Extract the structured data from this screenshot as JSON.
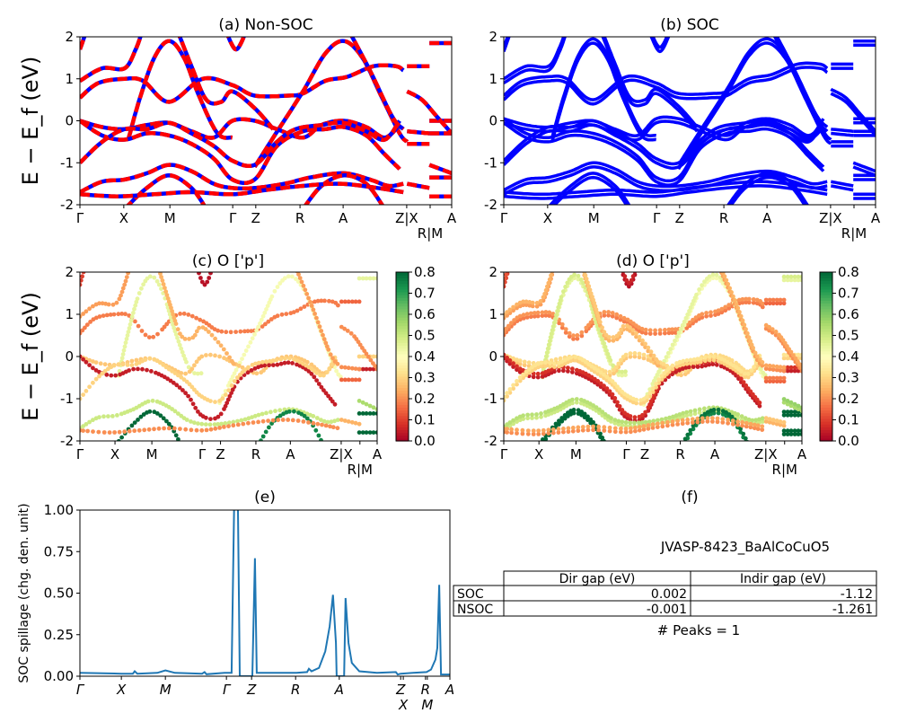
{
  "chart_data": [
    {
      "panel": "a",
      "type": "line",
      "title": "(a) Non-SOC",
      "ylabel": "E − E_f (eV)",
      "ylim": [
        -2,
        2
      ],
      "yticks": [
        -2,
        -1,
        0,
        1,
        2
      ],
      "xticks": [
        {
          "k": 0,
          "label": "Γ"
        },
        {
          "k": 0.118,
          "label": "X"
        },
        {
          "k": 0.242,
          "label": "M"
        },
        {
          "k": 0.411,
          "label": "Γ"
        },
        {
          "k": 0.473,
          "label": "Z"
        },
        {
          "k": 0.592,
          "label": "R"
        },
        {
          "k": 0.708,
          "label": "A"
        },
        {
          "k": 0.879,
          "label": "Z|X"
        },
        {
          "k": 0.942,
          "label": "R|M"
        },
        {
          "k": 1.0,
          "label": "A"
        }
      ],
      "colors": {
        "spin_up": "#0000ff",
        "spin_down": "#ff0000"
      },
      "bands": [
        {
          "w": 0.22,
          "points": [
            [
              0,
              0.95
            ],
            [
              0.06,
              1.25
            ],
            [
              0.12,
              1.25
            ],
            [
              0.15,
              1.7
            ],
            [
              0.17,
              2.2
            ]
          ]
        },
        {
          "w": 0.18,
          "points": [
            [
              0,
              0.55
            ],
            [
              0.05,
              0.9
            ],
            [
              0.12,
              1.0
            ],
            [
              0.17,
              0.95
            ],
            [
              0.24,
              0.45
            ],
            [
              0.33,
              1.0
            ],
            [
              0.41,
              0.85
            ],
            [
              0.47,
              0.6
            ],
            [
              0.56,
              0.6
            ],
            [
              0.6,
              0.65
            ],
            [
              0.66,
              0.95
            ],
            [
              0.72,
              1.05
            ],
            [
              0.79,
              1.3
            ],
            [
              0.85,
              1.3
            ],
            [
              0.87,
              1.2
            ]
          ]
        },
        {
          "w": 0.45,
          "points": [
            [
              0.13,
              -0.45
            ],
            [
              0.16,
              0.5
            ],
            [
              0.2,
              1.5
            ],
            [
              0.24,
              1.9
            ],
            [
              0.28,
              1.5
            ],
            [
              0.32,
              0.6
            ],
            [
              0.37,
              -0.3
            ],
            [
              0.41,
              -0.4
            ]
          ]
        },
        {
          "w": 0.42,
          "points": [
            [
              0.47,
              -1.1
            ],
            [
              0.52,
              -0.4
            ],
            [
              0.6,
              0.7
            ],
            [
              0.66,
              1.6
            ],
            [
              0.71,
              1.9
            ],
            [
              0.76,
              1.5
            ],
            [
              0.81,
              0.6
            ],
            [
              0.86,
              -0.3
            ],
            [
              0.88,
              -0.5
            ]
          ]
        },
        {
          "w": 0.28,
          "points": [
            [
              0,
              0
            ],
            [
              0.06,
              -0.15
            ],
            [
              0.12,
              -0.2
            ],
            [
              0.18,
              -0.1
            ],
            [
              0.24,
              -0.05
            ],
            [
              0.3,
              -0.25
            ],
            [
              0.36,
              -0.4
            ],
            [
              0.41,
              0.0
            ],
            [
              0.47,
              0.0
            ],
            [
              0.53,
              -0.2
            ],
            [
              0.6,
              -0.4
            ],
            [
              0.65,
              -0.1
            ],
            [
              0.71,
              0.0
            ],
            [
              0.77,
              -0.15
            ],
            [
              0.82,
              -0.4
            ],
            [
              0.86,
              -0.1
            ]
          ]
        },
        {
          "w": 0.05,
          "points": [
            [
              0,
              0
            ],
            [
              0.06,
              -0.35
            ],
            [
              0.12,
              -0.45
            ],
            [
              0.18,
              -0.3
            ],
            [
              0.24,
              -0.35
            ],
            [
              0.3,
              -0.55
            ],
            [
              0.36,
              -0.9
            ],
            [
              0.41,
              -1.4
            ],
            [
              0.47,
              -1.4
            ],
            [
              0.53,
              -0.6
            ],
            [
              0.6,
              -0.25
            ],
            [
              0.66,
              -0.2
            ],
            [
              0.71,
              -0.15
            ],
            [
              0.77,
              -0.35
            ],
            [
              0.82,
              -0.8
            ],
            [
              0.86,
              -1.15
            ]
          ]
        },
        {
          "w": 0.3,
          "points": [
            [
              0,
              -1.0
            ],
            [
              0.06,
              -0.5
            ],
            [
              0.12,
              -0.2
            ],
            [
              0.18,
              -0.2
            ],
            [
              0.24,
              -0.05
            ],
            [
              0.3,
              -0.3
            ],
            [
              0.36,
              -0.6
            ],
            [
              0.41,
              -0.95
            ],
            [
              0.47,
              -1.05
            ],
            [
              0.53,
              -0.5
            ],
            [
              0.58,
              -0.2
            ],
            [
              0.65,
              -0.1
            ],
            [
              0.71,
              -0.05
            ],
            [
              0.77,
              -0.25
            ],
            [
              0.82,
              -0.45
            ],
            [
              0.86,
              0.0
            ]
          ]
        },
        {
          "w": 0.5,
          "points": [
            [
              0,
              -1.7
            ],
            [
              0.06,
              -1.45
            ],
            [
              0.12,
              -1.4
            ],
            [
              0.18,
              -1.25
            ],
            [
              0.24,
              -1.05
            ],
            [
              0.3,
              -1.2
            ],
            [
              0.36,
              -1.5
            ],
            [
              0.41,
              -1.6
            ],
            [
              0.47,
              -1.6
            ],
            [
              0.55,
              -1.5
            ],
            [
              0.62,
              -1.35
            ],
            [
              0.71,
              -1.25
            ],
            [
              0.78,
              -1.4
            ],
            [
              0.83,
              -1.55
            ],
            [
              0.87,
              -1.5
            ]
          ]
        },
        {
          "w": 0.8,
          "points": [
            [
              0.12,
              -2.1
            ],
            [
              0.18,
              -1.6
            ],
            [
              0.24,
              -1.3
            ],
            [
              0.3,
              -1.6
            ],
            [
              0.34,
              -2.1
            ]
          ]
        },
        {
          "w": 0.75,
          "points": [
            [
              0.6,
              -2.1
            ],
            [
              0.65,
              -1.55
            ],
            [
              0.71,
              -1.3
            ],
            [
              0.77,
              -1.5
            ],
            [
              0.82,
              -2.1
            ]
          ]
        },
        {
          "w": 0.2,
          "points": [
            [
              0,
              -1.75
            ],
            [
              0.1,
              -1.8
            ],
            [
              0.2,
              -1.75
            ],
            [
              0.3,
              -1.7
            ],
            [
              0.41,
              -1.75
            ],
            [
              0.5,
              -1.65
            ],
            [
              0.6,
              -1.55
            ],
            [
              0.7,
              -1.5
            ],
            [
              0.8,
              -1.6
            ],
            [
              0.87,
              -1.7
            ]
          ]
        },
        {
          "w": 0.25,
          "points": [
            [
              0.26,
              2.2
            ],
            [
              0.3,
              1.3
            ],
            [
              0.34,
              0.5
            ],
            [
              0.38,
              0.45
            ],
            [
              0.41,
              0.7
            ],
            [
              0.47,
              0.3
            ],
            [
              0.52,
              -0.2
            ]
          ]
        },
        {
          "w": 0.03,
          "points": [
            [
              0.39,
              2.2
            ],
            [
              0.42,
              1.7
            ],
            [
              0.45,
              2.2
            ]
          ]
        },
        {
          "w": 0.22,
          "points": [
            [
              0.72,
              2.2
            ],
            [
              0.78,
              1.2
            ],
            [
              0.84,
              0.1
            ],
            [
              0.87,
              -0.2
            ]
          ]
        },
        {
          "w": 0.1,
          "points": [
            [
              0,
              1.7
            ],
            [
              0.02,
              2.2
            ]
          ]
        },
        {
          "w": 0.15,
          "points": [
            [
              0.88,
              1.3
            ],
            [
              0.94,
              1.3
            ]
          ]
        },
        {
          "w": 0.45,
          "points": [
            [
              0.94,
              1.85
            ],
            [
              1.0,
              1.85
            ]
          ]
        },
        {
          "w": 0.15,
          "points": [
            [
              0.88,
              -0.55
            ],
            [
              0.94,
              -0.55
            ]
          ]
        },
        {
          "w": 0.3,
          "points": [
            [
              0.94,
              0.0
            ],
            [
              1.0,
              0.0
            ]
          ]
        },
        {
          "w": 0.05,
          "points": [
            [
              0.94,
              -0.3
            ],
            [
              1.0,
              -0.3
            ]
          ]
        },
        {
          "w": 0.2,
          "points": [
            [
              0.88,
              -0.25
            ],
            [
              0.94,
              -0.3
            ]
          ]
        },
        {
          "w": 0.25,
          "points": [
            [
              0.88,
              -1.5
            ],
            [
              0.94,
              -1.6
            ]
          ]
        },
        {
          "w": 0.8,
          "points": [
            [
              0.94,
              -1.35
            ],
            [
              1.0,
              -1.35
            ]
          ]
        },
        {
          "w": 0.55,
          "points": [
            [
              0.94,
              -1.05
            ],
            [
              1.0,
              -1.25
            ]
          ]
        },
        {
          "w": 0.2,
          "points": [
            [
              0.88,
              0.7
            ],
            [
              0.92,
              0.5
            ],
            [
              0.96,
              0.1
            ],
            [
              1.0,
              -0.3
            ]
          ]
        },
        {
          "w": 0.8,
          "points": [
            [
              0.94,
              -1.8
            ],
            [
              1.0,
              -1.8
            ]
          ]
        }
      ]
    },
    {
      "panel": "b",
      "type": "line",
      "title": "(b) SOC",
      "ylim": [
        -2,
        2
      ],
      "soc_split_ev": 0.05,
      "colors": {
        "bands": "#0000ff"
      }
    },
    {
      "panel": "c",
      "type": "scatter",
      "title": "(c)  O ['p']",
      "ylabel": "E − E_f (eV)",
      "ylim": [
        -2,
        2
      ],
      "colorbar": {
        "colormap": "RdYlGn",
        "range": [
          0,
          0.8
        ],
        "ticks": [
          "0.0",
          "0.1",
          "0.2",
          "0.3",
          "0.4",
          "0.5",
          "0.6",
          "0.7",
          "0.8"
        ]
      }
    },
    {
      "panel": "d",
      "type": "scatter",
      "title": "(d) O ['p']",
      "ylim": [
        -2,
        2
      ],
      "colorbar": {
        "colormap": "RdYlGn",
        "range": [
          0,
          0.8
        ],
        "ticks": [
          "0.0",
          "0.1",
          "0.2",
          "0.3",
          "0.4",
          "0.5",
          "0.6",
          "0.7",
          "0.8"
        ]
      }
    },
    {
      "panel": "e",
      "type": "line",
      "title": "(e)",
      "ylabel": "SOC spillage (chg. den. unit)",
      "ylim": [
        0,
        1.0
      ],
      "yticks": [
        "0.00",
        "0.25",
        "0.50",
        "0.75",
        "1.00"
      ],
      "color": "#1f77b4",
      "xticks": [
        {
          "k": 0,
          "label": "Γ"
        },
        {
          "k": 0.112,
          "label": "X"
        },
        {
          "k": 0.231,
          "label": "M"
        },
        {
          "k": 0.396,
          "label": "Γ"
        },
        {
          "k": 0.464,
          "label": "Z"
        },
        {
          "k": 0.583,
          "label": "R"
        },
        {
          "k": 0.701,
          "label": "A"
        },
        {
          "k": 0.867,
          "label": "Z"
        },
        {
          "k": 0.874,
          "label": "X"
        },
        {
          "k": 0.934,
          "label": "R"
        },
        {
          "k": 0.939,
          "label": "M"
        },
        {
          "k": 1.0,
          "label": "A"
        }
      ],
      "x": [
        0,
        0.112,
        0.143,
        0.148,
        0.155,
        0.209,
        0.231,
        0.257,
        0.33,
        0.337,
        0.342,
        0.391,
        0.41,
        0.417,
        0.427,
        0.432,
        0.466,
        0.473,
        0.478,
        0.585,
        0.614,
        0.619,
        0.626,
        0.646,
        0.663,
        0.675,
        0.684,
        0.692,
        0.694,
        0.714,
        0.718,
        0.726,
        0.735,
        0.755,
        0.803,
        0.854,
        0.859,
        0.867,
        0.9,
        0.937,
        0.949,
        0.961,
        0.966,
        0.971,
        0.976,
        1.0
      ],
      "y": [
        0.02,
        0.015,
        0.015,
        0.03,
        0.015,
        0.02,
        0.035,
        0.02,
        0.015,
        0.025,
        0.012,
        0.02,
        0.02,
        1.05,
        1.05,
        0.0,
        0.0,
        0.71,
        0.02,
        0.02,
        0.025,
        0.045,
        0.03,
        0.05,
        0.15,
        0.3,
        0.49,
        0.2,
        0.0,
        0.0,
        0.47,
        0.2,
        0.08,
        0.03,
        0.02,
        0.025,
        0.01,
        0.015,
        0.02,
        0.025,
        0.04,
        0.1,
        0.17,
        0.55,
        0.01,
        0.01
      ]
    }
  ],
  "panel_f": {
    "title": "(f)",
    "material": "JVASP-8423_BaAlCoCuO5",
    "table": {
      "columns": [
        "Dir gap (eV)",
        "Indir gap (eV)"
      ],
      "rows": [
        {
          "label": "SOC",
          "dir": "0.002",
          "indir": "-1.12"
        },
        {
          "label": "NSOC",
          "dir": "-0.001",
          "indir": "-1.261"
        }
      ]
    },
    "peaks": "# Peaks = 1"
  }
}
